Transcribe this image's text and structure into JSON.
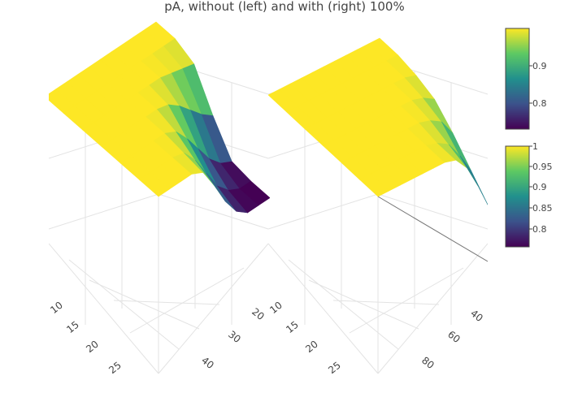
{
  "chart_data": {
    "type": "surface",
    "title": "pA, without (left) and with (right) 100%",
    "subplots": [
      {
        "name": "left",
        "x_ticks": [
          "10",
          "15",
          "20",
          "25"
        ],
        "y_ticks": [
          "20",
          "30",
          "40"
        ],
        "colorbar": {
          "ticks": [
            "0.8",
            "0.9"
          ],
          "range": [
            0.73,
            0.99
          ]
        },
        "surface_z": [
          [
            0.99,
            0.99,
            0.99,
            0.99,
            0.99,
            0.99,
            0.99,
            0.99,
            0.99,
            0.99,
            0.99
          ],
          [
            0.99,
            0.99,
            0.99,
            0.99,
            0.99,
            0.99,
            0.99,
            0.99,
            0.99,
            0.99,
            0.99
          ],
          [
            0.99,
            0.99,
            0.99,
            0.99,
            0.99,
            0.99,
            0.99,
            0.99,
            0.98,
            0.97,
            0.96
          ],
          [
            0.99,
            0.99,
            0.99,
            0.99,
            0.99,
            0.99,
            0.98,
            0.95,
            0.91,
            0.87,
            0.84
          ],
          [
            0.99,
            0.99,
            0.99,
            0.99,
            0.99,
            0.97,
            0.92,
            0.86,
            0.8,
            0.76,
            0.74
          ],
          [
            0.99,
            0.99,
            0.99,
            0.99,
            0.98,
            0.93,
            0.86,
            0.79,
            0.75,
            0.73,
            0.73
          ],
          [
            0.99,
            0.99,
            0.99,
            0.99,
            0.97,
            0.9,
            0.82,
            0.76,
            0.73,
            0.73,
            0.73
          ]
        ]
      },
      {
        "name": "right",
        "x_ticks": [
          "10",
          "15",
          "20",
          "25"
        ],
        "y_ticks": [
          "40",
          "60",
          "80"
        ],
        "colorbar": {
          "ticks": [
            "1",
            "0.95",
            "0.9",
            "0.85",
            "0.8"
          ],
          "range": [
            0.76,
            1.0
          ]
        },
        "surface_z": [
          [
            1,
            1,
            1,
            1,
            1,
            1,
            1,
            1,
            1,
            1,
            1
          ],
          [
            1,
            1,
            1,
            1,
            1,
            1,
            1,
            1,
            1,
            1,
            1
          ],
          [
            1,
            1,
            1,
            1,
            1,
            1,
            1,
            1,
            1,
            1,
            0.99
          ],
          [
            1,
            1,
            1,
            1,
            1,
            1,
            1,
            1,
            1,
            0.99,
            0.97
          ],
          [
            1,
            1,
            1,
            1,
            1,
            1,
            1,
            1,
            0.99,
            0.97,
            0.92
          ],
          [
            1,
            1,
            1,
            1,
            1,
            1,
            1,
            0.99,
            0.97,
            0.92,
            0.86
          ],
          [
            1,
            1,
            1,
            1,
            1,
            1,
            1,
            0.99,
            0.95,
            0.88,
            0.8
          ]
        ]
      }
    ],
    "colorscale": "viridis",
    "colors": {
      "purple": "#440154",
      "blue": "#3b528b",
      "teal": "#21908d",
      "green": "#5dc963",
      "yellow": "#fde725"
    },
    "grid": true,
    "legend": "none"
  }
}
